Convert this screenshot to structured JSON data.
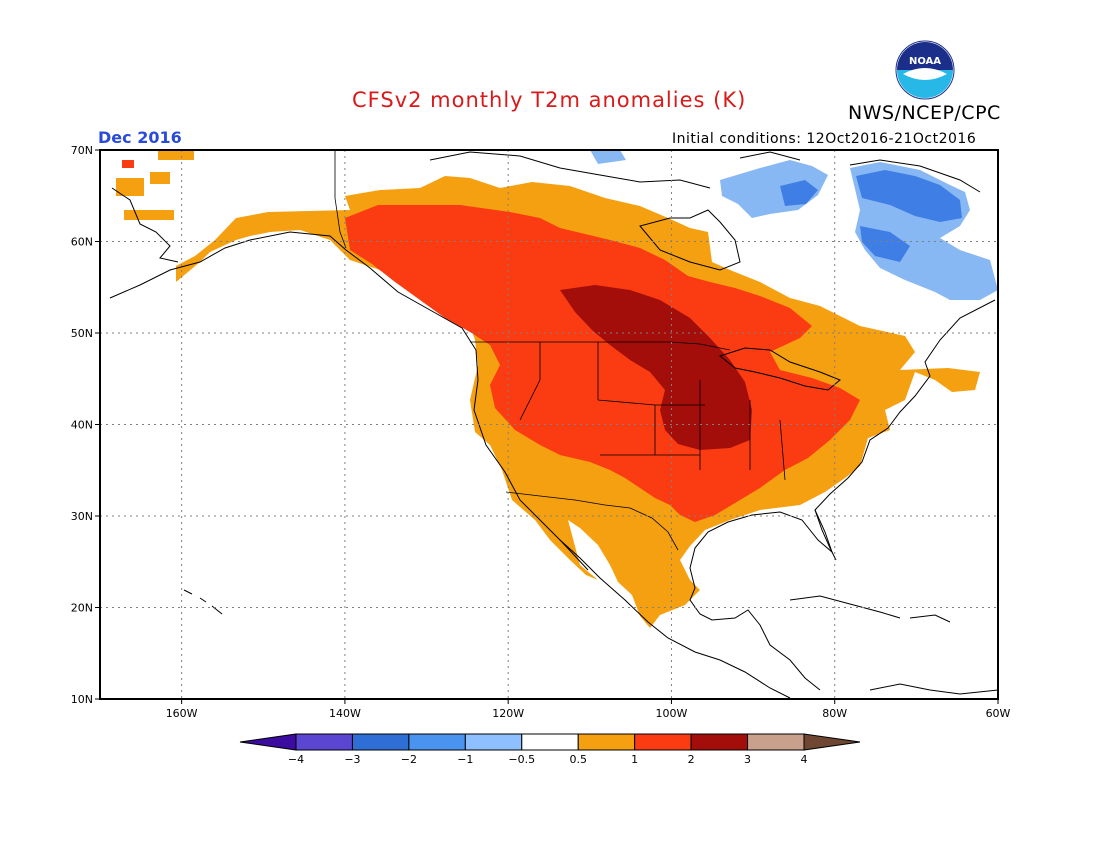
{
  "title": "CFSv2 monthly T2m anomalies (K)",
  "organization": "NWS/NCEP/CPC",
  "logo_text": "NOAA",
  "valid_month": "Dec 2016",
  "initial_conditions": "Initial conditions: 12Oct2016-21Oct2016",
  "axes": {
    "lat_ticks": [
      {
        "value": 70,
        "label": "70N"
      },
      {
        "value": 60,
        "label": "60N"
      },
      {
        "value": 50,
        "label": "50N"
      },
      {
        "value": 40,
        "label": "40N"
      },
      {
        "value": 30,
        "label": "30N"
      },
      {
        "value": 20,
        "label": "20N"
      },
      {
        "value": 10,
        "label": "10N"
      }
    ],
    "lon_ticks": [
      {
        "value": -160,
        "label": "160W"
      },
      {
        "value": -140,
        "label": "140W"
      },
      {
        "value": -120,
        "label": "120W"
      },
      {
        "value": -100,
        "label": "100W"
      },
      {
        "value": -80,
        "label": "80W"
      },
      {
        "value": -60,
        "label": "60W"
      }
    ],
    "lon_range": [
      -170,
      -60
    ],
    "lat_range": [
      10,
      70
    ],
    "grid": "dotted"
  },
  "colorbar": {
    "colors": [
      "#3c0ca0",
      "#5a46d0",
      "#2f6ed4",
      "#4a94f0",
      "#8ec0ff",
      "#ffffff",
      "#f5a010",
      "#fb3c12",
      "#a30e0a",
      "#c8a08c",
      "#6e4632"
    ],
    "labels": [
      "−4",
      "−3",
      "−2",
      "−1",
      "−0.5",
      "0.5",
      "1",
      "2",
      "3",
      "4"
    ]
  },
  "anomaly_class_colors": {
    "cold_2": "#3f7ee4",
    "cold_1": "#88b8f4",
    "warm_0_5": "#f5a010",
    "warm_1": "#fb3c12",
    "warm_2": "#a30e0a"
  }
}
